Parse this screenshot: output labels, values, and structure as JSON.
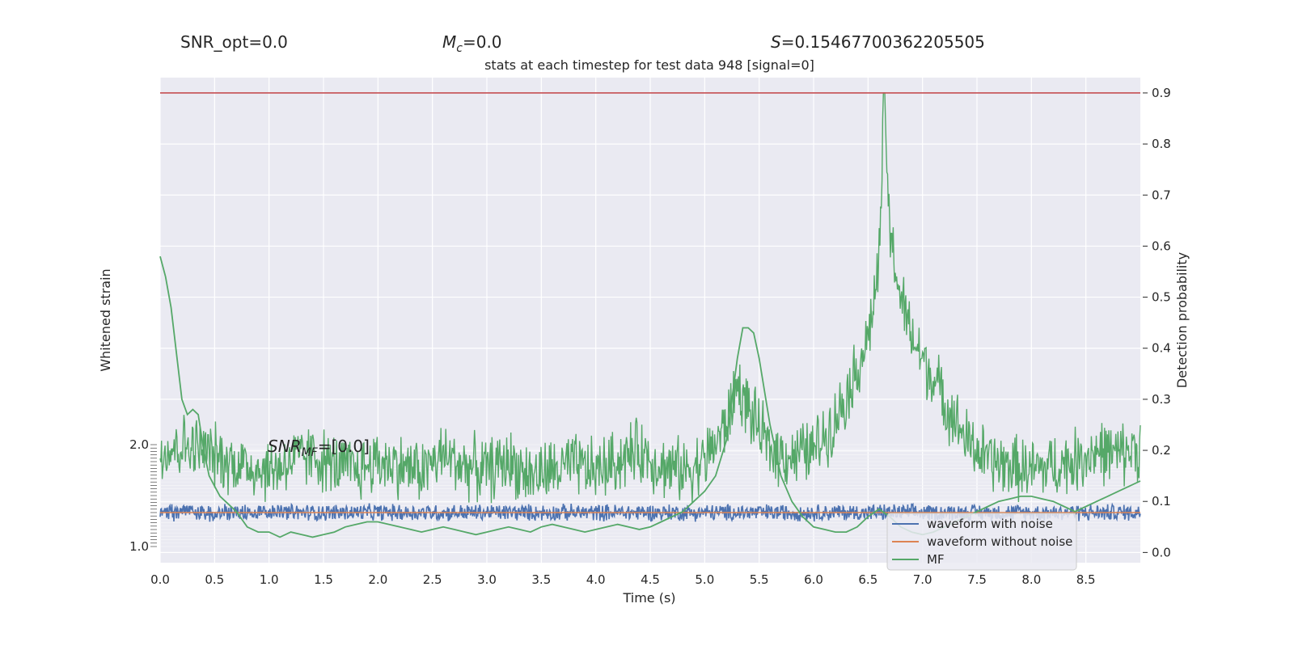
{
  "header": {
    "snr_opt": "SNR_opt=0.0",
    "mc_symbol": "M",
    "mc_sub": "c",
    "mc_value": "=0.0",
    "s_symbol": "S",
    "s_value": "=0.15467700362205505"
  },
  "annotation": {
    "snr_mf_symbol": "SNR",
    "snr_mf_sub": "MF",
    "snr_mf_value": "=[0.0]"
  },
  "colors": {
    "axes_bg": "#eaeaf2",
    "grid": "#ffffff",
    "waveform_with_noise": "#4c72b0",
    "waveform_without_noise": "#dd8452",
    "mf": "#55a868",
    "threshold": "#c44e52"
  },
  "chart_data": {
    "type": "line",
    "title": "stats at each timestep for test data 948 [signal=0]",
    "xlabel": "Time (s)",
    "ylabel_left": "Whitened strain",
    "ylabel_right": "Detection probability",
    "xlim": [
      0.0,
      9.0
    ],
    "ylim_left": [
      -1.0,
      2.0
    ],
    "ylim_right": [
      -0.02,
      0.93
    ],
    "x_ticks": [
      "0.0",
      "0.5",
      "1.0",
      "1.5",
      "2.0",
      "2.5",
      "3.0",
      "3.5",
      "4.0",
      "4.5",
      "5.0",
      "5.5",
      "6.0",
      "6.5",
      "7.0",
      "7.5",
      "8.0",
      "8.5"
    ],
    "y_ticks_right": [
      "0.0",
      "0.1",
      "0.2",
      "0.3",
      "0.4",
      "0.5",
      "0.6",
      "0.7",
      "0.8",
      "0.9"
    ],
    "y_ticks_left": [
      "2.0",
      "1.0"
    ],
    "grid": true,
    "legend_position": "lower right",
    "threshold": 0.9,
    "series": [
      {
        "name": "waveform with noise",
        "axis": "left",
        "envelope": {
          "center": 0.0,
          "amplitude": 0.28
        }
      },
      {
        "name": "waveform without noise",
        "axis": "left",
        "constant": 0.0
      },
      {
        "name": "MF",
        "axis": "left",
        "x": [
          0.0,
          0.05,
          0.1,
          0.15,
          0.2,
          0.25,
          0.3,
          0.35,
          0.4,
          0.45,
          0.5,
          0.55,
          0.6,
          0.7,
          0.8,
          0.9,
          1.0,
          1.1,
          1.2,
          1.3,
          1.4,
          1.5,
          1.6,
          1.7,
          1.8,
          1.9,
          2.0,
          2.1,
          2.2,
          2.3,
          2.4,
          2.5,
          2.6,
          2.7,
          2.8,
          2.9,
          3.0,
          3.1,
          3.2,
          3.3,
          3.4,
          3.5,
          3.6,
          3.7,
          3.8,
          3.9,
          4.0,
          4.1,
          4.2,
          4.3,
          4.4,
          4.5,
          4.6,
          4.7,
          4.8,
          4.9,
          5.0,
          5.1,
          5.2,
          5.3,
          5.35,
          5.4,
          5.45,
          5.5,
          5.6,
          5.7,
          5.8,
          5.9,
          6.0,
          6.1,
          6.2,
          6.3,
          6.4,
          6.5,
          6.6,
          6.7,
          6.8,
          6.9,
          7.0,
          7.1,
          7.2,
          7.3,
          7.4,
          7.5,
          7.6,
          7.7,
          7.8,
          7.9,
          8.0,
          8.1,
          8.2,
          8.3,
          8.4,
          8.5,
          8.6,
          8.7,
          8.8,
          8.9,
          9.0
        ],
        "y": [
          0.58,
          0.54,
          0.48,
          0.39,
          0.3,
          0.27,
          0.28,
          0.27,
          0.2,
          0.15,
          0.13,
          0.11,
          0.1,
          0.08,
          0.05,
          0.04,
          0.04,
          0.03,
          0.04,
          0.035,
          0.03,
          0.035,
          0.04,
          0.05,
          0.055,
          0.06,
          0.06,
          0.055,
          0.05,
          0.045,
          0.04,
          0.045,
          0.05,
          0.045,
          0.04,
          0.035,
          0.04,
          0.045,
          0.05,
          0.045,
          0.04,
          0.05,
          0.055,
          0.05,
          0.045,
          0.04,
          0.045,
          0.05,
          0.055,
          0.05,
          0.045,
          0.05,
          0.06,
          0.07,
          0.08,
          0.1,
          0.12,
          0.15,
          0.22,
          0.38,
          0.44,
          0.44,
          0.43,
          0.38,
          0.25,
          0.15,
          0.1,
          0.07,
          0.05,
          0.045,
          0.04,
          0.04,
          0.05,
          0.07,
          0.085,
          0.07,
          0.05,
          0.04,
          0.035,
          0.04,
          0.05,
          0.06,
          0.07,
          0.08,
          0.09,
          0.1,
          0.105,
          0.11,
          0.11,
          0.105,
          0.1,
          0.09,
          0.08,
          0.09,
          0.1,
          0.11,
          0.12,
          0.13,
          0.14
        ]
      },
      {
        "name": "detection probability",
        "axis": "right",
        "x": [
          0.0,
          0.2,
          0.4,
          0.6,
          0.8,
          1.0,
          1.2,
          1.4,
          1.6,
          1.8,
          2.0,
          2.2,
          2.4,
          2.6,
          2.8,
          3.0,
          3.2,
          3.4,
          3.6,
          3.8,
          4.0,
          4.2,
          4.4,
          4.6,
          4.8,
          5.0,
          5.2,
          5.3,
          5.4,
          5.5,
          5.6,
          5.8,
          6.0,
          6.2,
          6.4,
          6.5,
          6.6,
          6.65,
          6.7,
          6.8,
          6.9,
          7.0,
          7.2,
          7.4,
          7.6,
          7.8,
          8.0,
          8.2,
          8.4,
          8.6,
          8.8,
          9.0
        ],
        "y": [
          0.2,
          0.21,
          0.2,
          0.18,
          0.17,
          0.16,
          0.18,
          0.19,
          0.17,
          0.16,
          0.18,
          0.17,
          0.16,
          0.19,
          0.17,
          0.16,
          0.18,
          0.15,
          0.16,
          0.17,
          0.16,
          0.18,
          0.2,
          0.17,
          0.16,
          0.18,
          0.25,
          0.33,
          0.28,
          0.24,
          0.2,
          0.19,
          0.2,
          0.26,
          0.36,
          0.42,
          0.56,
          0.9,
          0.62,
          0.5,
          0.42,
          0.38,
          0.3,
          0.22,
          0.18,
          0.17,
          0.16,
          0.17,
          0.18,
          0.2,
          0.19,
          0.21
        ]
      }
    ]
  }
}
